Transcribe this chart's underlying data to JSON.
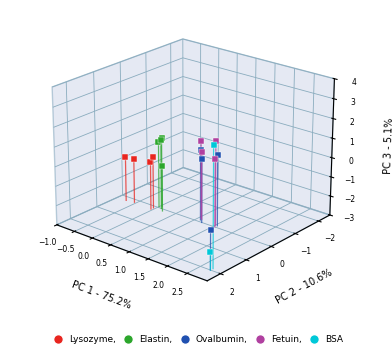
{
  "xlabel": "PC 1 - 75.2%",
  "ylabel": "PC 2 - 10.6%",
  "zlabel": "PC 3 - 5.1%",
  "xlim": [
    -1.0,
    3.0
  ],
  "ylim": [
    -2.5,
    2.5
  ],
  "zlim": [
    -3.0,
    4.0
  ],
  "xticks": [
    -1.0,
    -0.5,
    0.0,
    0.5,
    1.0,
    1.5,
    2.0,
    2.5
  ],
  "yticks": [
    -2,
    -1,
    0,
    1,
    2
  ],
  "zticks": [
    -3,
    -2,
    -1,
    0,
    1,
    2,
    3,
    4
  ],
  "proteins": {
    "Lysozyme": {
      "color": "#e8251f",
      "points": [
        [
          -0.75,
          0.2,
          -0.7
        ],
        [
          -0.55,
          0.15,
          -0.7
        ],
        [
          -0.05,
          0.2,
          -0.5
        ],
        [
          -0.05,
          0.1,
          -0.3
        ]
      ]
    },
    "Elastin": {
      "color": "#2ca62c",
      "points": [
        [
          0.0,
          -0.05,
          0.4
        ],
        [
          0.05,
          -0.1,
          0.6
        ],
        [
          0.1,
          0.0,
          0.6
        ],
        [
          0.2,
          0.1,
          -0.65
        ]
      ]
    },
    "Ovalbumin": {
      "color": "#2050b0",
      "points": [
        [
          1.1,
          -0.1,
          0.65
        ],
        [
          1.2,
          0.0,
          0.3
        ],
        [
          1.55,
          -0.1,
          0.65
        ],
        [
          2.75,
          2.0,
          -1.0
        ]
      ]
    },
    "Fetuin": {
      "color": "#b040a0",
      "points": [
        [
          1.05,
          -0.2,
          1.0
        ],
        [
          1.1,
          -0.15,
          0.5
        ],
        [
          1.5,
          -0.1,
          1.35
        ],
        [
          1.55,
          0.0,
          0.5
        ]
      ]
    },
    "BSA": {
      "color": "#00c8d8",
      "points": [
        [
          2.75,
          2.0,
          -2.1
        ],
        [
          2.75,
          1.9,
          3.0
        ]
      ]
    }
  },
  "legend_entries": [
    "Lysozyme,",
    "Elastin,",
    "Ovalbumin,",
    "Fetuin,",
    "BSA"
  ],
  "legend_colors": [
    "#e8251f",
    "#2ca62c",
    "#2050b0",
    "#b040a0",
    "#00c8d8"
  ],
  "pane_color": "#ccd5e8",
  "floor_color": "#c8d0e4",
  "edge_color": "#7aa0b8",
  "grid_color": "#8aacbe"
}
